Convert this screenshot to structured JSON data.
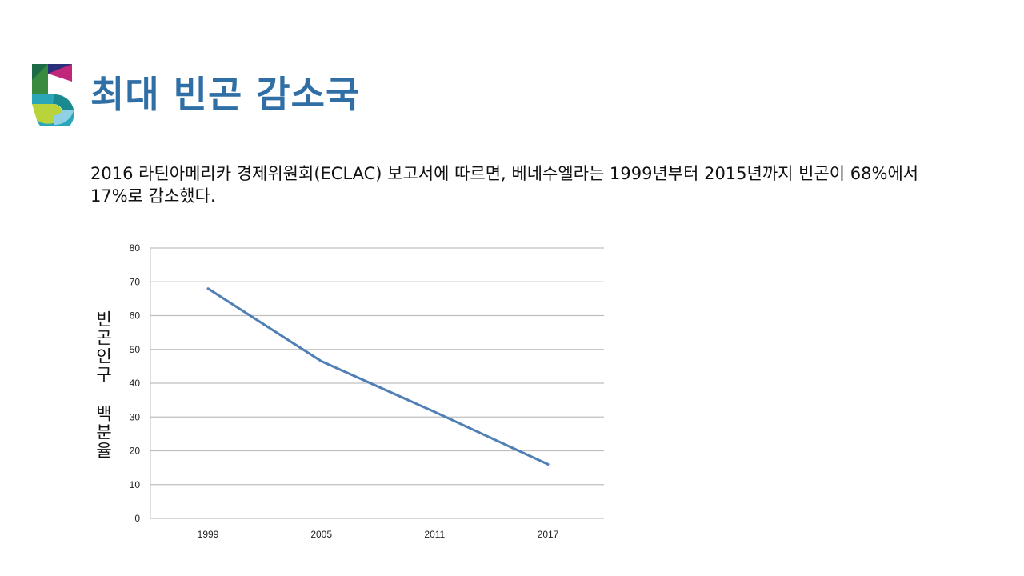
{
  "slide": {
    "title": "최대 빈곤 감소국",
    "body": "2016 라틴아메리카 경제위원회(ECLAC) 보고서에 따르면, 베네수엘라는 1999년부터 2015년까지 빈곤이 68%에서 17%로 감소했다."
  },
  "colors": {
    "title": "#2f6fa6",
    "line": "#4f7fb5",
    "grid": "#bfbfbf"
  },
  "chart_data": {
    "type": "line",
    "title": "",
    "xlabel": "",
    "ylabel": "빈곤인구 백분율",
    "categories": [
      "1999",
      "2005",
      "2011",
      "2017"
    ],
    "x": [
      1999,
      2005,
      2011,
      2017
    ],
    "series": [
      {
        "values": [
          68,
          46.5,
          31.5,
          16
        ]
      }
    ],
    "ylim": [
      0,
      80
    ],
    "yticks": [
      0,
      10,
      20,
      30,
      40,
      50,
      60,
      70,
      80
    ],
    "grid": true,
    "legend": "none"
  }
}
